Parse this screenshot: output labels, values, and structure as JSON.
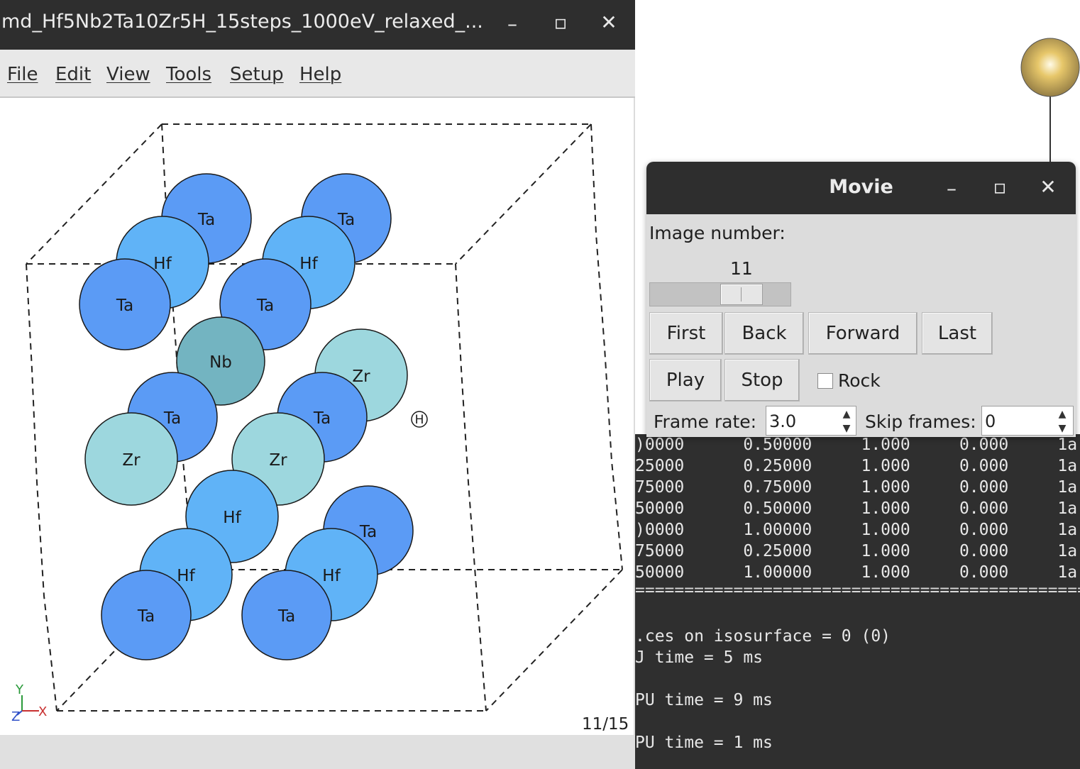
{
  "main_window": {
    "title": "md_Hf5Nb2Ta10Zr5H_15steps_1000eV_relaxed_...",
    "controls": {
      "minimize": "–",
      "maximize": "▫",
      "close": "✕"
    },
    "menu": [
      "File",
      "Edit",
      "View",
      "Tools",
      "Setup",
      "Help"
    ],
    "atoms": [
      {
        "label": "Ta",
        "color": "#5b9bf5"
      },
      {
        "label": "Ta",
        "color": "#5b9bf5"
      },
      {
        "label": "Hf",
        "color": "#60b3f7"
      },
      {
        "label": "Hf",
        "color": "#60b3f7"
      },
      {
        "label": "Ta",
        "color": "#5b9bf5"
      },
      {
        "label": "Ta",
        "color": "#5b9bf5"
      },
      {
        "label": "Nb",
        "color": "#73b4c1"
      },
      {
        "label": "Zr",
        "color": "#9dd7de"
      },
      {
        "label": "Ta",
        "color": "#5b9bf5"
      },
      {
        "label": "Ta",
        "color": "#5b9bf5"
      },
      {
        "label": "Zr",
        "color": "#9dd7de"
      },
      {
        "label": "Zr",
        "color": "#9dd7de"
      },
      {
        "label": "H",
        "color": "#ffffff"
      },
      {
        "label": "Hf",
        "color": "#60b3f7"
      },
      {
        "label": "Ta",
        "color": "#5b9bf5"
      },
      {
        "label": "Hf",
        "color": "#60b3f7"
      },
      {
        "label": "Hf",
        "color": "#60b3f7"
      },
      {
        "label": "Ta",
        "color": "#5b9bf5"
      },
      {
        "label": "Ta",
        "color": "#5b9bf5"
      }
    ],
    "axes": {
      "x": "X",
      "y": "Y",
      "z": "Z"
    },
    "frame_counter": "11/15"
  },
  "movie_dialog": {
    "title": "Movie",
    "controls": {
      "minimize": "–",
      "maximize": "▫",
      "close": "✕"
    },
    "image_number_label": "Image number:",
    "image_number_value": "11",
    "slider_fraction": 0.71,
    "buttons": {
      "first": "First",
      "back": "Back",
      "forward": "Forward",
      "last": "Last",
      "play": "Play",
      "stop": "Stop"
    },
    "rock_label": "Rock",
    "rock_checked": false,
    "frame_rate_label": "Frame rate:",
    "frame_rate_value": "3.0",
    "skip_frames_label": "Skip frames:",
    "skip_frames_value": "0"
  },
  "terminal": {
    "table_rows": [
      ")0000      0.50000     1.000     0.000     1a",
      "25000      0.25000     1.000     0.000     1a",
      "75000      0.75000     1.000     0.000     1a",
      "50000      0.50000     1.000     0.000     1a",
      ")0000      1.00000     1.000     0.000     1a",
      "75000      0.25000     1.000     0.000     1a",
      "50000      1.00000     1.000     0.000     1a"
    ],
    "separator": "==================================================",
    "log_lines": [
      ".ces on isosurface = 0 (0)",
      "J time = 5 ms",
      "",
      "PU time = 9 ms",
      "",
      "PU time = 1 ms"
    ]
  },
  "colors": {
    "titlebar": "#2e2e2e",
    "dialog_bg": "#dcdcdc",
    "terminal_bg": "#2f2f2f"
  }
}
